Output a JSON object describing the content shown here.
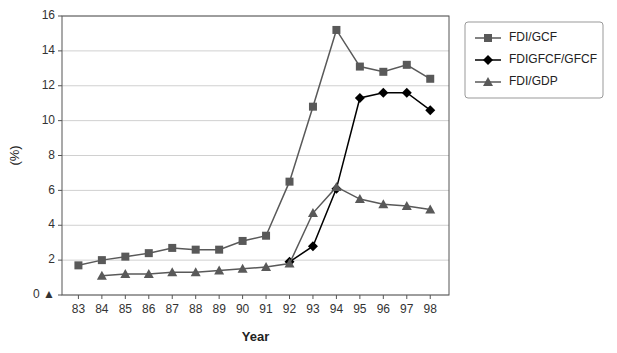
{
  "chart_data": {
    "type": "line",
    "x": [
      83,
      84,
      85,
      86,
      87,
      88,
      89,
      90,
      91,
      92,
      93,
      94,
      95,
      96,
      97,
      98
    ],
    "series": [
      {
        "name": "FDI/GCF",
        "color": "#595959",
        "marker": "square",
        "values": [
          1.7,
          2.0,
          2.2,
          2.4,
          2.7,
          2.6,
          2.6,
          3.1,
          3.4,
          6.5,
          10.8,
          15.2,
          13.1,
          12.8,
          13.2,
          12.4
        ]
      },
      {
        "name": "FDIGFCF/GFCF",
        "color": "#000000",
        "marker": "diamond",
        "values": [
          null,
          null,
          null,
          null,
          null,
          null,
          null,
          null,
          null,
          1.9,
          2.8,
          6.1,
          11.3,
          11.6,
          11.6,
          10.6
        ]
      },
      {
        "name": "FDI/GDP",
        "color": "#595959",
        "marker": "triangle",
        "values": [
          null,
          1.1,
          1.2,
          1.2,
          1.3,
          1.3,
          1.4,
          1.5,
          1.6,
          1.8,
          4.7,
          6.2,
          5.5,
          5.2,
          5.1,
          4.9
        ]
      }
    ],
    "xlim": [
      82.3,
      98.8
    ],
    "xticks": [
      83,
      84,
      85,
      86,
      87,
      88,
      89,
      90,
      91,
      92,
      93,
      94,
      95,
      96,
      97,
      98
    ],
    "ylim": [
      0,
      16
    ],
    "yticks": [
      {
        "value": 0,
        "label": "0 ▲"
      },
      2,
      4,
      6,
      8,
      10,
      12,
      14,
      16
    ],
    "xlabel": "Year",
    "ylabel": "(%)",
    "grid": true,
    "legend": "right"
  }
}
